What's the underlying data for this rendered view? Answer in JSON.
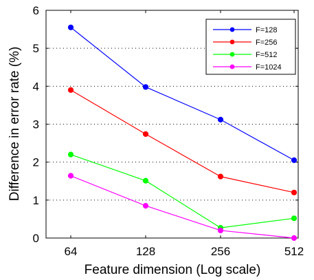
{
  "chart_data": {
    "type": "line",
    "title": "",
    "xlabel": "Feature dimension (Log scale)",
    "ylabel": "Difference in error rate (%)",
    "x_scale": "log2",
    "categories": [
      "64",
      "128",
      "256",
      "512"
    ],
    "x": [
      64,
      128,
      256,
      512
    ],
    "ylim": [
      0,
      6
    ],
    "yticks": [
      "0",
      "1",
      "2",
      "3",
      "4",
      "5",
      "6"
    ],
    "grid": "horizontal dotted",
    "legend_position": "top-right",
    "series": [
      {
        "name": "F=128",
        "color": "#0000ff",
        "values": [
          5.55,
          3.98,
          3.12,
          2.05
        ]
      },
      {
        "name": "F=256",
        "color": "#ff0000",
        "values": [
          3.9,
          2.74,
          1.62,
          1.2
        ]
      },
      {
        "name": "F=512",
        "color": "#00ff00",
        "values": [
          2.2,
          1.51,
          0.27,
          0.52
        ]
      },
      {
        "name": "F=1024",
        "color": "#ff00ff",
        "values": [
          1.64,
          0.85,
          0.2,
          0.0
        ]
      }
    ]
  }
}
